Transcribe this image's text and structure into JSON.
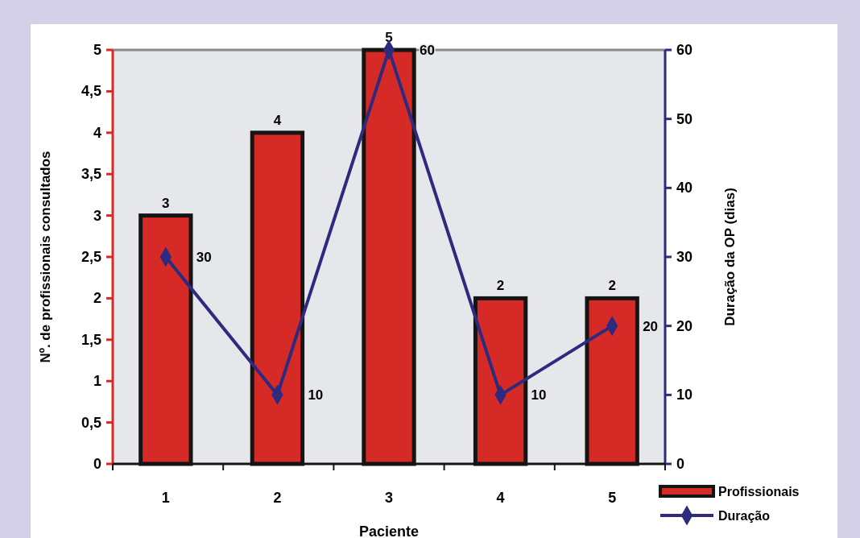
{
  "chart_data": {
    "type": "bar",
    "categories": [
      "1",
      "2",
      "3",
      "4",
      "5"
    ],
    "xlabel": "Paciente",
    "ylabel": "Nº. de profissionais consultados",
    "y2label": "Duração da OP (dias)",
    "series": [
      {
        "name": "Profissionais",
        "color": "#d62a26",
        "values": [
          3,
          4,
          5,
          2,
          2
        ]
      },
      {
        "name": "Duração",
        "type": "line",
        "axis": "y2",
        "color": "#2e2a7e",
        "values": [
          30,
          10,
          60,
          10,
          20
        ],
        "marker": "diamond"
      }
    ],
    "ylim": [
      0,
      5
    ],
    "yticks": [
      0,
      {
        "value": 0.5,
        "label": "0,5"
      },
      1,
      {
        "value": 1.5,
        "label": "1,5"
      },
      2,
      {
        "value": 2.5,
        "label": "2,5"
      },
      3,
      {
        "value": 3.5,
        "label": "3,5"
      },
      4,
      {
        "value": 4.5,
        "label": "4,5"
      },
      5
    ],
    "y2lim": [
      0,
      60
    ],
    "y2ticks": [
      0,
      10,
      20,
      30,
      40,
      50,
      60
    ],
    "data_labels": true,
    "legend": "bottom right",
    "grid": false
  }
}
